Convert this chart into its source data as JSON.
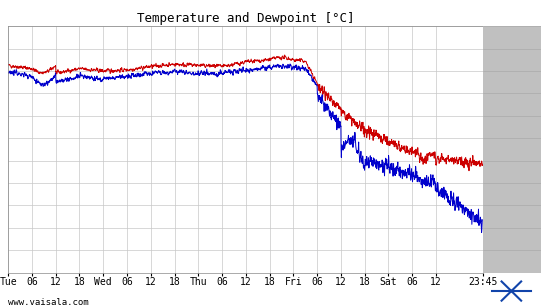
{
  "title": "Temperature and Dewpoint [°C]",
  "bg_color": "#ffffff",
  "plot_bg_color": "#ffffff",
  "grid_color": "#c8c8c8",
  "ylim": [
    -14,
    8
  ],
  "yticks": [
    -14,
    -12,
    -10,
    -8,
    -6,
    -4,
    -2,
    0,
    2,
    4,
    6,
    8
  ],
  "xlabel_bottom": "www.vaisala.com",
  "xtick_labels": [
    "Tue",
    "06",
    "12",
    "18",
    "Wed",
    "06",
    "12",
    "18",
    "Thu",
    "06",
    "12",
    "18",
    "Fri",
    "06",
    "12",
    "18",
    "Sat",
    "06",
    "12",
    "23:45"
  ],
  "right_panel_color": "#c0c0c0",
  "line_red_color": "#cc0000",
  "line_blue_color": "#0000cc",
  "line_width": 0.7,
  "tick_positions": [
    0,
    6,
    12,
    18,
    24,
    30,
    36,
    42,
    48,
    54,
    60,
    66,
    72,
    78,
    84,
    90,
    96,
    102,
    108,
    119.75
  ],
  "total_hours": 119.75
}
